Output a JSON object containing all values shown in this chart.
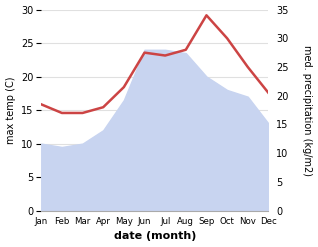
{
  "months": [
    "Jan",
    "Feb",
    "Mar",
    "Apr",
    "May",
    "Jun",
    "Jul",
    "Aug",
    "Sep",
    "Oct",
    "Nov",
    "Dec"
  ],
  "temp_values": [
    10.0,
    9.5,
    10.0,
    12.0,
    16.5,
    24.0,
    24.0,
    23.5,
    20.0,
    18.0,
    17.0,
    13.0
  ],
  "precip_values": [
    18.5,
    17.0,
    17.0,
    18.0,
    21.5,
    27.5,
    27.0,
    28.0,
    34.0,
    30.0,
    25.0,
    20.5
  ],
  "temp_ylim": [
    0,
    30
  ],
  "precip_ylim": [
    0,
    35
  ],
  "temp_fill_color": "#c8d4f0",
  "precip_color": "#cc4444",
  "xlabel": "date (month)",
  "ylabel_left": "max temp (C)",
  "ylabel_right": "med. precipitation (kg/m2)",
  "bg_color": "#ffffff",
  "grid_color": "#e0e0e0"
}
